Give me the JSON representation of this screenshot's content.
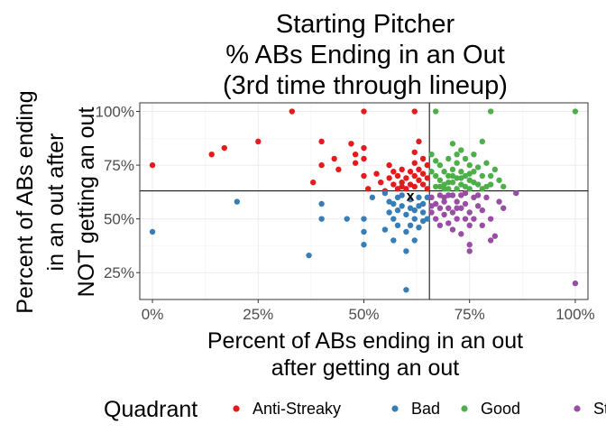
{
  "chart_data": {
    "type": "scatter",
    "title": [
      "Starting Pitcher",
      "% ABs Ending in an Out",
      "(3rd time through lineup)"
    ],
    "xlabel": [
      "Percent of ABs ending in an out",
      "after getting an out"
    ],
    "ylabel": [
      "Percent of ABs ending",
      "in an out after",
      "NOT getting an out"
    ],
    "xlim": [
      -0.03,
      1.03
    ],
    "ylim": [
      0.125,
      1.04
    ],
    "x_ticks": [
      {
        "value": 0.0,
        "label": "0%"
      },
      {
        "value": 0.25,
        "label": "25%"
      },
      {
        "value": 0.5,
        "label": "50%"
      },
      {
        "value": 0.75,
        "label": "75%"
      },
      {
        "value": 1.0,
        "label": "100%"
      }
    ],
    "y_ticks": [
      {
        "value": 0.25,
        "label": "25%"
      },
      {
        "value": 0.5,
        "label": "50%"
      },
      {
        "value": 0.75,
        "label": "75%"
      },
      {
        "value": 1.0,
        "label": "100%"
      }
    ],
    "grid": true,
    "reference_lines": {
      "x": 0.655,
      "y": 0.63
    },
    "center_marker": {
      "label": "x",
      "x": 0.61,
      "y": 0.61
    },
    "legend": {
      "title": "Quadrant",
      "position": "bottom"
    },
    "series": [
      {
        "name": "Anti-Streaky",
        "color": "#e41a1c",
        "points": [
          [
            0.0,
            0.75
          ],
          [
            0.14,
            0.8
          ],
          [
            0.17,
            0.83
          ],
          [
            0.25,
            0.86
          ],
          [
            0.33,
            1.0
          ],
          [
            0.38,
            0.67
          ],
          [
            0.4,
            0.86
          ],
          [
            0.4,
            0.75
          ],
          [
            0.43,
            0.78
          ],
          [
            0.44,
            0.73
          ],
          [
            0.47,
            0.85
          ],
          [
            0.48,
            0.8
          ],
          [
            0.48,
            0.76
          ],
          [
            0.5,
            1.0
          ],
          [
            0.5,
            0.83
          ],
          [
            0.5,
            0.78
          ],
          [
            0.5,
            0.7
          ],
          [
            0.51,
            0.64
          ],
          [
            0.53,
            0.71
          ],
          [
            0.54,
            0.67
          ],
          [
            0.55,
            0.63
          ],
          [
            0.56,
            0.75
          ],
          [
            0.57,
            0.72
          ],
          [
            0.57,
            0.66
          ],
          [
            0.58,
            0.7
          ],
          [
            0.58,
            0.64
          ],
          [
            0.59,
            0.73
          ],
          [
            0.59,
            0.67
          ],
          [
            0.6,
            0.69
          ],
          [
            0.6,
            0.64
          ],
          [
            0.61,
            0.72
          ],
          [
            0.61,
            0.66
          ],
          [
            0.62,
            1.0
          ],
          [
            0.62,
            0.81
          ],
          [
            0.62,
            0.76
          ],
          [
            0.62,
            0.7
          ],
          [
            0.62,
            0.65
          ],
          [
            0.63,
            0.86
          ],
          [
            0.63,
            0.73
          ],
          [
            0.63,
            0.68
          ],
          [
            0.64,
            0.78
          ],
          [
            0.64,
            0.71
          ],
          [
            0.64,
            0.66
          ],
          [
            0.65,
            0.75
          ],
          [
            0.65,
            0.69
          ],
          [
            0.65,
            0.64
          ],
          [
            0.56,
            0.69
          ],
          [
            0.59,
            0.65
          ]
        ]
      },
      {
        "name": "Bad",
        "color": "#377eb8",
        "points": [
          [
            0.0,
            0.44
          ],
          [
            0.2,
            0.58
          ],
          [
            0.37,
            0.33
          ],
          [
            0.4,
            0.57
          ],
          [
            0.4,
            0.5
          ],
          [
            0.46,
            0.5
          ],
          [
            0.5,
            0.5
          ],
          [
            0.5,
            0.44
          ],
          [
            0.5,
            0.38
          ],
          [
            0.55,
            0.62
          ],
          [
            0.56,
            0.58
          ],
          [
            0.56,
            0.53
          ],
          [
            0.57,
            0.5
          ],
          [
            0.57,
            0.57
          ],
          [
            0.58,
            0.54
          ],
          [
            0.58,
            0.47
          ],
          [
            0.59,
            0.61
          ],
          [
            0.59,
            0.56
          ],
          [
            0.6,
            0.52
          ],
          [
            0.6,
            0.44
          ],
          [
            0.6,
            0.17
          ],
          [
            0.61,
            0.59
          ],
          [
            0.61,
            0.55
          ],
          [
            0.62,
            0.5
          ],
          [
            0.62,
            0.4
          ],
          [
            0.63,
            0.6
          ],
          [
            0.63,
            0.56
          ],
          [
            0.63,
            0.46
          ],
          [
            0.64,
            0.53
          ],
          [
            0.64,
            0.57
          ],
          [
            0.65,
            0.5
          ],
          [
            0.65,
            0.6
          ],
          [
            0.52,
            0.6
          ],
          [
            0.55,
            0.45
          ],
          [
            0.58,
            0.6
          ],
          [
            0.62,
            0.54
          ],
          [
            0.64,
            0.49
          ],
          [
            0.61,
            0.47
          ],
          [
            0.57,
            0.4
          ],
          [
            0.6,
            0.35
          ]
        ]
      },
      {
        "name": "Good",
        "color": "#4daf4a",
        "points": [
          [
            0.67,
            1.0
          ],
          [
            0.8,
            1.0
          ],
          [
            1.0,
            1.0
          ],
          [
            0.66,
            0.8
          ],
          [
            0.67,
            0.7
          ],
          [
            0.67,
            0.65
          ],
          [
            0.68,
            0.75
          ],
          [
            0.68,
            0.68
          ],
          [
            0.69,
            0.72
          ],
          [
            0.69,
            0.66
          ],
          [
            0.7,
            0.78
          ],
          [
            0.7,
            0.7
          ],
          [
            0.7,
            0.64
          ],
          [
            0.71,
            0.85
          ],
          [
            0.71,
            0.73
          ],
          [
            0.71,
            0.67
          ],
          [
            0.72,
            0.76
          ],
          [
            0.72,
            0.69
          ],
          [
            0.72,
            0.64
          ],
          [
            0.73,
            0.82
          ],
          [
            0.73,
            0.72
          ],
          [
            0.73,
            0.66
          ],
          [
            0.74,
            0.78
          ],
          [
            0.74,
            0.7
          ],
          [
            0.75,
            0.75
          ],
          [
            0.75,
            0.68
          ],
          [
            0.75,
            0.64
          ],
          [
            0.76,
            0.72
          ],
          [
            0.76,
            0.8
          ],
          [
            0.77,
            0.66
          ],
          [
            0.77,
            0.74
          ],
          [
            0.78,
            0.7
          ],
          [
            0.78,
            0.64
          ],
          [
            0.79,
            0.76
          ],
          [
            0.8,
            0.7
          ],
          [
            0.8,
            0.66
          ],
          [
            0.81,
            0.73
          ],
          [
            0.82,
            0.68
          ],
          [
            0.83,
            0.65
          ],
          [
            0.78,
            0.86
          ],
          [
            0.74,
            0.65
          ],
          [
            0.69,
            0.64
          ],
          [
            0.66,
            0.72
          ],
          [
            0.76,
            0.67
          ],
          [
            0.72,
            0.8
          ],
          [
            0.67,
            0.77
          ],
          [
            0.79,
            0.65
          ],
          [
            0.71,
            0.7
          ],
          [
            0.75,
            0.71
          ],
          [
            0.68,
            0.65
          ],
          [
            0.73,
            0.69
          ],
          [
            0.7,
            0.67
          ]
        ]
      },
      {
        "name": "Streaky",
        "color": "#984ea3",
        "points": [
          [
            0.66,
            0.6
          ],
          [
            0.66,
            0.53
          ],
          [
            0.67,
            0.5
          ],
          [
            0.67,
            0.57
          ],
          [
            0.68,
            0.55
          ],
          [
            0.68,
            0.61
          ],
          [
            0.69,
            0.52
          ],
          [
            0.69,
            0.58
          ],
          [
            0.7,
            0.48
          ],
          [
            0.7,
            0.55
          ],
          [
            0.7,
            0.61
          ],
          [
            0.71,
            0.45
          ],
          [
            0.71,
            0.53
          ],
          [
            0.72,
            0.58
          ],
          [
            0.72,
            0.5
          ],
          [
            0.73,
            0.43
          ],
          [
            0.73,
            0.55
          ],
          [
            0.73,
            0.61
          ],
          [
            0.74,
            0.5
          ],
          [
            0.74,
            0.57
          ],
          [
            0.75,
            0.35
          ],
          [
            0.75,
            0.38
          ],
          [
            0.75,
            0.47
          ],
          [
            0.75,
            0.53
          ],
          [
            0.76,
            0.6
          ],
          [
            0.76,
            0.5
          ],
          [
            0.77,
            0.56
          ],
          [
            0.78,
            0.47
          ],
          [
            0.78,
            0.54
          ],
          [
            0.79,
            0.6
          ],
          [
            0.8,
            0.4
          ],
          [
            0.8,
            0.5
          ],
          [
            0.81,
            0.42
          ],
          [
            0.82,
            0.58
          ],
          [
            0.83,
            0.55
          ],
          [
            0.86,
            0.62
          ],
          [
            1.0,
            0.2
          ],
          [
            0.68,
            0.47
          ],
          [
            0.71,
            0.61
          ],
          [
            0.74,
            0.62
          ],
          [
            0.77,
            0.61
          ],
          [
            0.69,
            0.6
          ],
          [
            0.72,
            0.55
          ],
          [
            0.66,
            0.56
          ]
        ]
      }
    ]
  }
}
